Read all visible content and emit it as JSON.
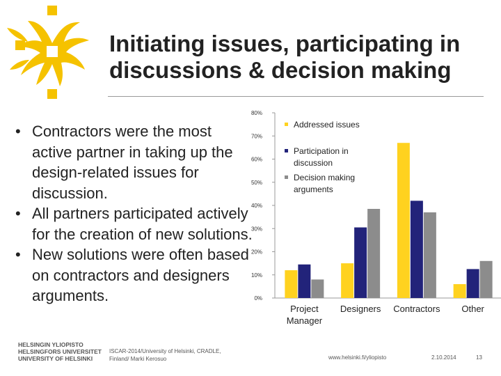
{
  "slide": {
    "title_line1": "Initiating issues, participating in",
    "title_line2": "discussions & decision making",
    "bullets": [
      {
        "marker": "•",
        "text": "Contractors were the most active partner in taking up the design-related issues for discussion."
      },
      {
        "marker": "•",
        "text": "All partners participated actively for the creation of new solutions."
      },
      {
        "marker": "•",
        "text": "New solutions were often based on contractors and designers arguments."
      }
    ],
    "footer": {
      "logo_lines": [
        "HELSINGIN YLIOPISTO",
        "HELSINGFORS UNIVERSITET",
        "UNIVERSITY OF HELSINKI"
      ],
      "credit_line1": "ISCAR-2014/University of Helsinki, CRADLE,",
      "credit_line2": "Finland/ Marki Kerosuo",
      "url": "www.helsinki.fi/yliopisto",
      "date": "2.10.2014",
      "page": "13"
    },
    "colors": {
      "brand": "#F5C200",
      "text": "#222222"
    }
  },
  "chart_data": {
    "type": "bar",
    "title": "",
    "xlabel": "",
    "ylabel": "",
    "ylim": [
      0,
      80
    ],
    "yticks": [
      0,
      10,
      20,
      30,
      40,
      50,
      60,
      70,
      80
    ],
    "ytick_labels": [
      "0%",
      "10%",
      "20%",
      "30%",
      "40%",
      "50%",
      "60%",
      "70%",
      "80%"
    ],
    "categories": [
      "Project Manager",
      "Designers",
      "Contractors",
      "Other"
    ],
    "category_lines": [
      [
        "Project",
        "Manager"
      ],
      [
        "Designers"
      ],
      [
        "Contractors"
      ],
      [
        "Other"
      ]
    ],
    "series": [
      {
        "name": "Addressed issues",
        "label_lines": [
          "Addressed issues"
        ],
        "color": "#FFD21F",
        "values": [
          12,
          15,
          67,
          6
        ]
      },
      {
        "name": "Participation in discussion",
        "label_lines": [
          "Participation in",
          "discussion"
        ],
        "color": "#22237A",
        "values": [
          14.5,
          30.5,
          42,
          12.5
        ]
      },
      {
        "name": "Decision making arguments",
        "label_lines": [
          "Decision making",
          "arguments"
        ],
        "color": "#8C8C8C",
        "values": [
          8,
          38.5,
          37,
          16
        ]
      }
    ],
    "legend_position": "top-left",
    "grid": false
  }
}
